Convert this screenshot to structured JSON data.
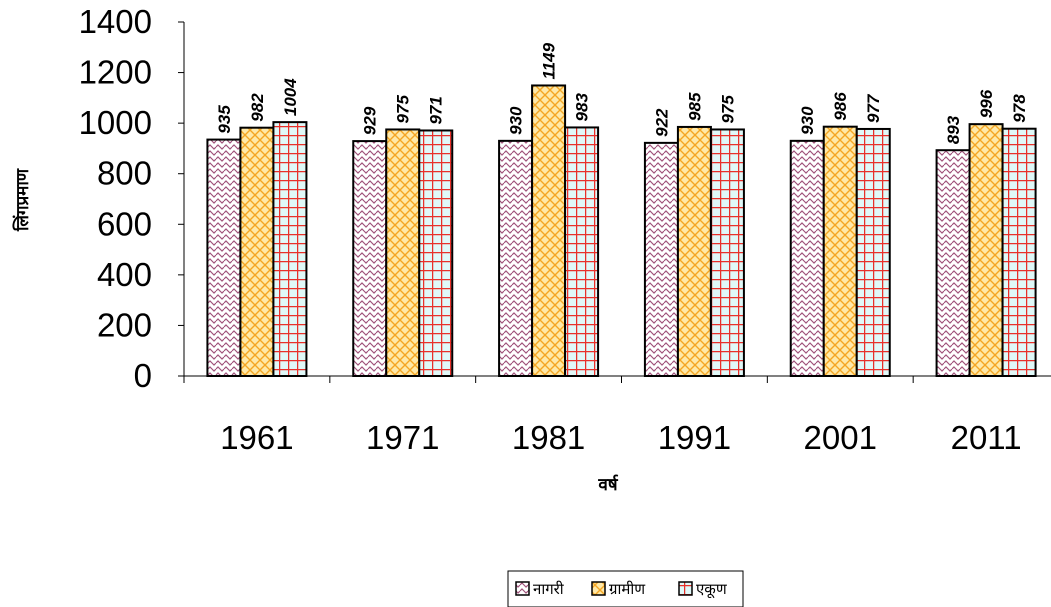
{
  "chart_data": {
    "type": "bar",
    "title": "",
    "xlabel": "वर्ष",
    "ylabel": "लिंगप्रमाण",
    "categories": [
      "1961",
      "1971",
      "1981",
      "1991",
      "2001",
      "2011"
    ],
    "ylim": [
      0,
      1400
    ],
    "yticks": [
      0,
      200,
      400,
      600,
      800,
      1000,
      1200,
      1400
    ],
    "grid": false,
    "legend_position": "bottom",
    "series": [
      {
        "name": "नागरी",
        "values": [
          935,
          929,
          930,
          922,
          930,
          893
        ],
        "fill": "#ffffff",
        "pattern_color": "#a0527a",
        "pattern": "wave"
      },
      {
        "name": "ग्रामीण",
        "values": [
          982,
          975,
          1149,
          985,
          986,
          996
        ],
        "fill": "#ffe9a8",
        "pattern_color": "#f5a623",
        "pattern": "diamond"
      },
      {
        "name": "एकूण",
        "values": [
          1004,
          971,
          983,
          975,
          977,
          978
        ],
        "fill": "#e0f8f8",
        "pattern_color": "#e8302a",
        "pattern": "grid"
      }
    ]
  }
}
